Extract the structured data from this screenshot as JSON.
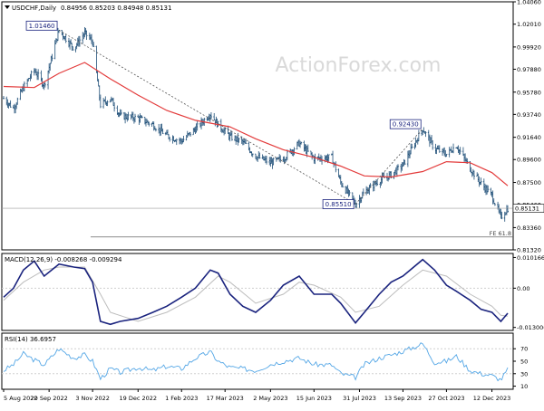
{
  "header": {
    "symbol": "USDCHF,Daily",
    "ohlc": "0.84956 0.85203 0.84948 0.85131"
  },
  "watermark": "ActionForex.com",
  "colors": {
    "background": "#ffffff",
    "axis": "#000000",
    "grid": "#cfcfcf",
    "bars": "#1f4f78",
    "sma": "#e33b3b",
    "macd": "#1a237e",
    "signal": "#bdbdbd",
    "rsi": "#55a7e6",
    "label_border": "#1a237e",
    "watermark": "#d9d9d9",
    "trendline": "#555555"
  },
  "chart_data": [
    {
      "type": "line",
      "panel": "price",
      "y_ticks": [
        "1.04060",
        "1.02010",
        "0.99920",
        "0.97880",
        "0.95780",
        "0.93740",
        "0.91640",
        "0.89600",
        "0.87500",
        "0.85460",
        "0.83360",
        "0.81320"
      ],
      "ylim": [
        0.8132,
        1.0406
      ],
      "x_tick_labels": [
        "5 Aug 2022",
        "20 Sep 2022",
        "3 Nov 2022",
        "19 Dec 2022",
        "1 Feb 2023",
        "17 Mar 2023",
        "2 May 2023",
        "15 Jun 2023",
        "31 Jul 2023",
        "13 Sep 2023",
        "27 Oct 2023",
        "12 Dec 2023"
      ],
      "x_range": [
        "2022-08-05",
        "2023-12-28"
      ],
      "last_price": "0.85131",
      "fe_label": "FE 61.8",
      "fe_level": 0.825,
      "annotations": [
        {
          "text": "1.01460",
          "date": "2022-09-30",
          "value": 1.0146
        },
        {
          "text": "0.85510",
          "date": "2023-07-27",
          "value": 0.8551
        },
        {
          "text": "0.92430",
          "date": "2023-10-03",
          "value": 0.9243
        }
      ],
      "close_keypoints": [
        [
          "2022-08-05",
          0.952
        ],
        [
          "2022-08-15",
          0.943
        ],
        [
          "2022-08-25",
          0.962
        ],
        [
          "2022-09-05",
          0.978
        ],
        [
          "2022-09-15",
          0.964
        ],
        [
          "2022-09-30",
          1.0146
        ],
        [
          "2022-10-15",
          0.998
        ],
        [
          "2022-10-26",
          1.012
        ],
        [
          "2022-11-03",
          1.004
        ],
        [
          "2022-11-11",
          0.946
        ],
        [
          "2022-11-21",
          0.952
        ],
        [
          "2022-12-01",
          0.936
        ],
        [
          "2022-12-19",
          0.934
        ],
        [
          "2023-01-03",
          0.928
        ],
        [
          "2023-01-17",
          0.918
        ],
        [
          "2023-02-01",
          0.913
        ],
        [
          "2023-02-15",
          0.924
        ],
        [
          "2023-03-02",
          0.938
        ],
        [
          "2023-03-10",
          0.928
        ],
        [
          "2023-03-22",
          0.917
        ],
        [
          "2023-04-04",
          0.912
        ],
        [
          "2023-04-17",
          0.899
        ],
        [
          "2023-05-02",
          0.893
        ],
        [
          "2023-05-15",
          0.897
        ],
        [
          "2023-05-31",
          0.911
        ],
        [
          "2023-06-15",
          0.897
        ],
        [
          "2023-07-03",
          0.898
        ],
        [
          "2023-07-12",
          0.875
        ],
        [
          "2023-07-27",
          0.8551
        ],
        [
          "2023-08-05",
          0.866
        ],
        [
          "2023-08-20",
          0.877
        ],
        [
          "2023-09-01",
          0.882
        ],
        [
          "2023-09-13",
          0.891
        ],
        [
          "2023-10-03",
          0.9243
        ],
        [
          "2023-10-15",
          0.906
        ],
        [
          "2023-10-27",
          0.901
        ],
        [
          "2023-11-06",
          0.909
        ],
        [
          "2023-11-20",
          0.888
        ],
        [
          "2023-12-01",
          0.874
        ],
        [
          "2023-12-12",
          0.863
        ],
        [
          "2023-12-21",
          0.843
        ],
        [
          "2023-12-28",
          0.8513
        ]
      ],
      "sma_keypoints": [
        [
          "2022-08-05",
          0.963
        ],
        [
          "2022-09-05",
          0.962
        ],
        [
          "2022-09-30",
          0.975
        ],
        [
          "2022-10-26",
          0.985
        ],
        [
          "2022-11-21",
          0.97
        ],
        [
          "2022-12-19",
          0.955
        ],
        [
          "2023-01-17",
          0.941
        ],
        [
          "2023-02-15",
          0.932
        ],
        [
          "2023-03-22",
          0.926
        ],
        [
          "2023-04-17",
          0.915
        ],
        [
          "2023-05-15",
          0.905
        ],
        [
          "2023-06-15",
          0.898
        ],
        [
          "2023-07-12",
          0.89
        ],
        [
          "2023-08-05",
          0.881
        ],
        [
          "2023-09-01",
          0.88
        ],
        [
          "2023-10-03",
          0.885
        ],
        [
          "2023-10-27",
          0.894
        ],
        [
          "2023-11-20",
          0.893
        ],
        [
          "2023-12-12",
          0.884
        ],
        [
          "2023-12-28",
          0.872
        ]
      ],
      "trendlines": [
        {
          "from": [
            "2022-09-30",
            1.0146
          ],
          "to": [
            "2023-07-27",
            0.8551
          ]
        },
        {
          "from": [
            "2023-07-27",
            0.8551
          ],
          "to": [
            "2023-10-03",
            0.9243
          ]
        }
      ]
    },
    {
      "type": "line",
      "panel": "macd",
      "label": "MACD(12,26,9) -0.008268 -0.009294",
      "y_ticks": [
        "0.010166",
        "0.00",
        "-0.013006"
      ],
      "ylim": [
        -0.014,
        0.0115
      ],
      "macd_keypoints": [
        [
          "2022-08-05",
          -0.003
        ],
        [
          "2022-08-15",
          0.0
        ],
        [
          "2022-08-25",
          0.006
        ],
        [
          "2022-09-05",
          0.009
        ],
        [
          "2022-09-15",
          0.004
        ],
        [
          "2022-09-30",
          0.008
        ],
        [
          "2022-10-15",
          0.007
        ],
        [
          "2022-10-26",
          0.0065
        ],
        [
          "2022-11-03",
          0.002
        ],
        [
          "2022-11-11",
          -0.011
        ],
        [
          "2022-11-21",
          -0.012
        ],
        [
          "2022-12-01",
          -0.011
        ],
        [
          "2022-12-19",
          -0.01
        ],
        [
          "2023-01-03",
          -0.008
        ],
        [
          "2023-01-17",
          -0.006
        ],
        [
          "2023-02-01",
          -0.003
        ],
        [
          "2023-02-15",
          0.0
        ],
        [
          "2023-03-02",
          0.006
        ],
        [
          "2023-03-10",
          0.005
        ],
        [
          "2023-03-22",
          -0.002
        ],
        [
          "2023-04-04",
          -0.006
        ],
        [
          "2023-04-17",
          -0.008
        ],
        [
          "2023-05-02",
          -0.004
        ],
        [
          "2023-05-15",
          0.001
        ],
        [
          "2023-05-31",
          0.004
        ],
        [
          "2023-06-15",
          -0.002
        ],
        [
          "2023-07-03",
          -0.002
        ],
        [
          "2023-07-12",
          -0.005
        ],
        [
          "2023-07-27",
          -0.0115
        ],
        [
          "2023-08-05",
          -0.008
        ],
        [
          "2023-08-20",
          -0.002
        ],
        [
          "2023-09-01",
          0.002
        ],
        [
          "2023-09-13",
          0.004
        ],
        [
          "2023-10-03",
          0.0095
        ],
        [
          "2023-10-15",
          0.006
        ],
        [
          "2023-10-27",
          0.001
        ],
        [
          "2023-11-06",
          -0.001
        ],
        [
          "2023-11-20",
          -0.004
        ],
        [
          "2023-12-01",
          -0.007
        ],
        [
          "2023-12-12",
          -0.008
        ],
        [
          "2023-12-21",
          -0.011
        ],
        [
          "2023-12-28",
          -0.0083
        ]
      ],
      "signal_keypoints": [
        [
          "2022-08-05",
          -0.004
        ],
        [
          "2022-08-25",
          0.002
        ],
        [
          "2022-09-15",
          0.006
        ],
        [
          "2022-09-30",
          0.007
        ],
        [
          "2022-10-26",
          0.007
        ],
        [
          "2022-11-11",
          -0.002
        ],
        [
          "2022-11-21",
          -0.008
        ],
        [
          "2022-12-19",
          -0.011
        ],
        [
          "2023-01-17",
          -0.008
        ],
        [
          "2023-02-15",
          -0.003
        ],
        [
          "2023-03-10",
          0.004
        ],
        [
          "2023-03-22",
          0.002
        ],
        [
          "2023-04-17",
          -0.005
        ],
        [
          "2023-05-15",
          -0.002
        ],
        [
          "2023-05-31",
          0.002
        ],
        [
          "2023-06-15",
          0.001
        ],
        [
          "2023-07-12",
          -0.003
        ],
        [
          "2023-07-27",
          -0.008
        ],
        [
          "2023-08-20",
          -0.006
        ],
        [
          "2023-09-13",
          0.001
        ],
        [
          "2023-10-03",
          0.006
        ],
        [
          "2023-10-27",
          0.004
        ],
        [
          "2023-11-20",
          -0.002
        ],
        [
          "2023-12-12",
          -0.006
        ],
        [
          "2023-12-21",
          -0.009
        ],
        [
          "2023-12-28",
          -0.0093
        ]
      ]
    },
    {
      "type": "line",
      "panel": "rsi",
      "label": "RSI(14) 36.6957",
      "y_ticks": [
        "70",
        "50",
        "30",
        "10"
      ],
      "ylim": [
        5,
        95
      ],
      "rsi_keypoints": [
        [
          "2022-08-05",
          35
        ],
        [
          "2022-08-15",
          45
        ],
        [
          "2022-08-25",
          62
        ],
        [
          "2022-09-05",
          52
        ],
        [
          "2022-09-15",
          44
        ],
        [
          "2022-09-30",
          70
        ],
        [
          "2022-10-15",
          55
        ],
        [
          "2022-10-26",
          60
        ],
        [
          "2022-11-03",
          50
        ],
        [
          "2022-11-11",
          22
        ],
        [
          "2022-11-21",
          38
        ],
        [
          "2022-12-01",
          32
        ],
        [
          "2022-12-19",
          40
        ],
        [
          "2023-01-03",
          35
        ],
        [
          "2023-01-17",
          42
        ],
        [
          "2023-02-01",
          38
        ],
        [
          "2023-02-15",
          55
        ],
        [
          "2023-03-02",
          65
        ],
        [
          "2023-03-10",
          50
        ],
        [
          "2023-03-22",
          40
        ],
        [
          "2023-04-04",
          38
        ],
        [
          "2023-04-17",
          35
        ],
        [
          "2023-05-02",
          45
        ],
        [
          "2023-05-15",
          50
        ],
        [
          "2023-05-31",
          55
        ],
        [
          "2023-06-15",
          45
        ],
        [
          "2023-07-03",
          44
        ],
        [
          "2023-07-12",
          30
        ],
        [
          "2023-07-27",
          24
        ],
        [
          "2023-08-05",
          45
        ],
        [
          "2023-08-20",
          55
        ],
        [
          "2023-09-01",
          60
        ],
        [
          "2023-09-13",
          66
        ],
        [
          "2023-10-03",
          78
        ],
        [
          "2023-10-15",
          48
        ],
        [
          "2023-10-27",
          50
        ],
        [
          "2023-11-06",
          58
        ],
        [
          "2023-11-20",
          35
        ],
        [
          "2023-12-01",
          30
        ],
        [
          "2023-12-12",
          27
        ],
        [
          "2023-12-21",
          20
        ],
        [
          "2023-12-28",
          36.7
        ]
      ]
    }
  ]
}
